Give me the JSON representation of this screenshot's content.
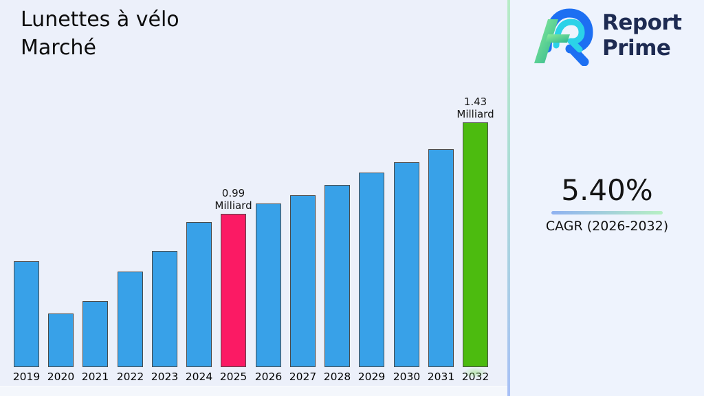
{
  "page": {
    "title_line1": "Lunettes à vélo",
    "title_line2": "Marché"
  },
  "logo": {
    "name_line1": "Report",
    "name_line2": "Prime",
    "icon": "report-prime-logo-icon",
    "text_color": "#1e2b52",
    "icon_colors": {
      "blue": "#1d6ff2",
      "cyan": "#2bd2e8",
      "green_light": "#90ee9a",
      "green_dark": "#28b48e"
    }
  },
  "cagr": {
    "value": "5.40%",
    "label": "CAGR (2026-2032)",
    "underline_gradient": [
      "#8fb1f1",
      "#b7f0c3"
    ]
  },
  "chart_data": {
    "type": "bar",
    "title": "Lunettes à vélo Marché",
    "xlabel": "",
    "ylabel": "",
    "unit": "Milliard",
    "grid": false,
    "legend": false,
    "ylim": [
      0.25,
      1.6
    ],
    "categories": [
      "2019",
      "2020",
      "2021",
      "2022",
      "2023",
      "2024",
      "2025",
      "2026",
      "2027",
      "2028",
      "2029",
      "2030",
      "2031",
      "2032"
    ],
    "values": [
      0.76,
      0.51,
      0.57,
      0.71,
      0.81,
      0.95,
      0.99,
      1.04,
      1.08,
      1.13,
      1.19,
      1.24,
      1.3,
      1.43
    ],
    "bar_color_default": "#38a1e8",
    "bar_border_color": "#4a4a4a",
    "highlights": [
      {
        "year": "2025",
        "color": "#fb1a64",
        "label_line1": "0.99",
        "label_line2": "Milliard"
      },
      {
        "year": "2032",
        "color": "#4cbb0f",
        "label_line1": "1.43",
        "label_line2": "Milliard"
      }
    ]
  },
  "panel": {
    "bg_left": "#ecf0fa",
    "bg_right": "#eef3fd",
    "divider_gradient": [
      "#b7ecc6",
      "#aadbd6",
      "#a8c0f6"
    ]
  }
}
